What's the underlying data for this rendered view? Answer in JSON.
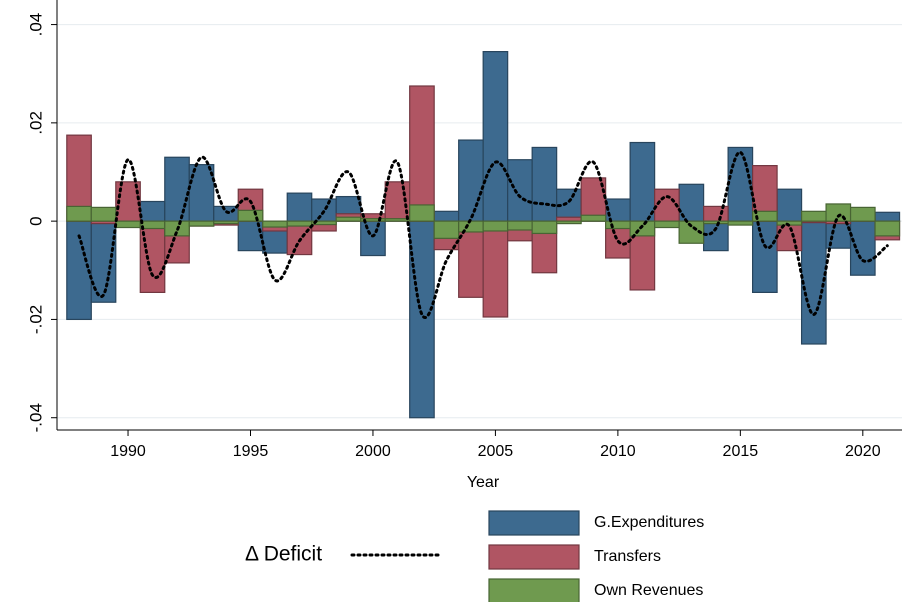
{
  "chart_data": {
    "type": "bar",
    "x_label": "Year",
    "x": [
      1988,
      1989,
      1990,
      1991,
      1992,
      1993,
      1994,
      1995,
      1996,
      1997,
      1998,
      1999,
      2000,
      2001,
      2002,
      2003,
      2004,
      2005,
      2006,
      2007,
      2008,
      2009,
      2010,
      2011,
      2012,
      2013,
      2014,
      2015,
      2016,
      2017,
      2018,
      2019,
      2020,
      2021
    ],
    "series": [
      {
        "name": "G.Expenditures",
        "type": "bar",
        "color": "#3d6a8f",
        "values": [
          -0.02,
          -0.0165,
          0,
          0.004,
          0.013,
          0.0115,
          0.003,
          -0.006,
          -0.0065,
          0.0057,
          0.0045,
          0.005,
          -0.007,
          0.0005,
          -0.04,
          0.002,
          0.0165,
          0.0345,
          0.0125,
          0.015,
          0.0065,
          0.005,
          0.0045,
          0.016,
          0.001,
          0.0075,
          -0.006,
          0.015,
          -0.0145,
          0.0065,
          -0.025,
          -0.0055,
          -0.011,
          0.0018
        ]
      },
      {
        "name": "Transfers",
        "type": "bar",
        "color": "#b05563",
        "values": [
          0.0175,
          -0.0005,
          0.008,
          -0.0145,
          -0.0085,
          -0.001,
          -0.0008,
          0.0065,
          -0.002,
          -0.0068,
          -0.002,
          0.0015,
          0.0015,
          0.008,
          0.0275,
          -0.0058,
          -0.0155,
          -0.0195,
          -0.004,
          -0.0105,
          0.0008,
          0.0088,
          -0.0075,
          -0.014,
          0.0065,
          -0.001,
          0.003,
          -0.0005,
          0.0113,
          -0.006,
          -0.0003,
          -0.0005,
          0.0005,
          -0.0038
        ]
      },
      {
        "name": "Own Revenues",
        "type": "bar",
        "color": "#6f9a4f",
        "values": [
          0.003,
          0.0028,
          -0.0013,
          -0.0015,
          -0.003,
          -0.001,
          -0.0005,
          0.0022,
          -0.0012,
          -0.001,
          -0.0007,
          0.0008,
          0.0005,
          0.0005,
          0.0033,
          -0.0035,
          -0.0022,
          -0.002,
          -0.0018,
          -0.0025,
          -0.0005,
          0.0012,
          -0.0015,
          -0.003,
          -0.0013,
          -0.0045,
          -0.0005,
          -0.0008,
          0.002,
          -0.0008,
          0.002,
          0.0035,
          0.0028,
          -0.003
        ]
      },
      {
        "name": "Δ Deficit",
        "type": "line",
        "color": "#000000",
        "values": [
          -0.003,
          -0.015,
          0.0125,
          -0.011,
          -0.002,
          0.013,
          0.002,
          0.004,
          -0.012,
          -0.004,
          0.002,
          0.01,
          -0.003,
          0.012,
          -0.019,
          -0.008,
          0.0005,
          0.012,
          0.005,
          0.0035,
          0.004,
          0.012,
          -0.004,
          -0.001,
          0.005,
          -0.001,
          -0.0015,
          0.014,
          -0.005,
          -0.001,
          -0.019,
          0.001,
          -0.008,
          -0.005
        ]
      }
    ],
    "xlim": [
      1987.1,
      2021.6
    ],
    "xticks": [
      1990,
      1995,
      2000,
      2005,
      2010,
      2015,
      2020
    ],
    "ylim": [
      -0.0425,
      0.045
    ],
    "yticks": [
      {
        "value": -0.04,
        "label": "-.04"
      },
      {
        "value": -0.02,
        "label": "-.02"
      },
      0,
      {
        "value": 0.02,
        "label": ".02"
      },
      {
        "value": 0.04,
        "label": ".04"
      }
    ],
    "grid": true
  }
}
